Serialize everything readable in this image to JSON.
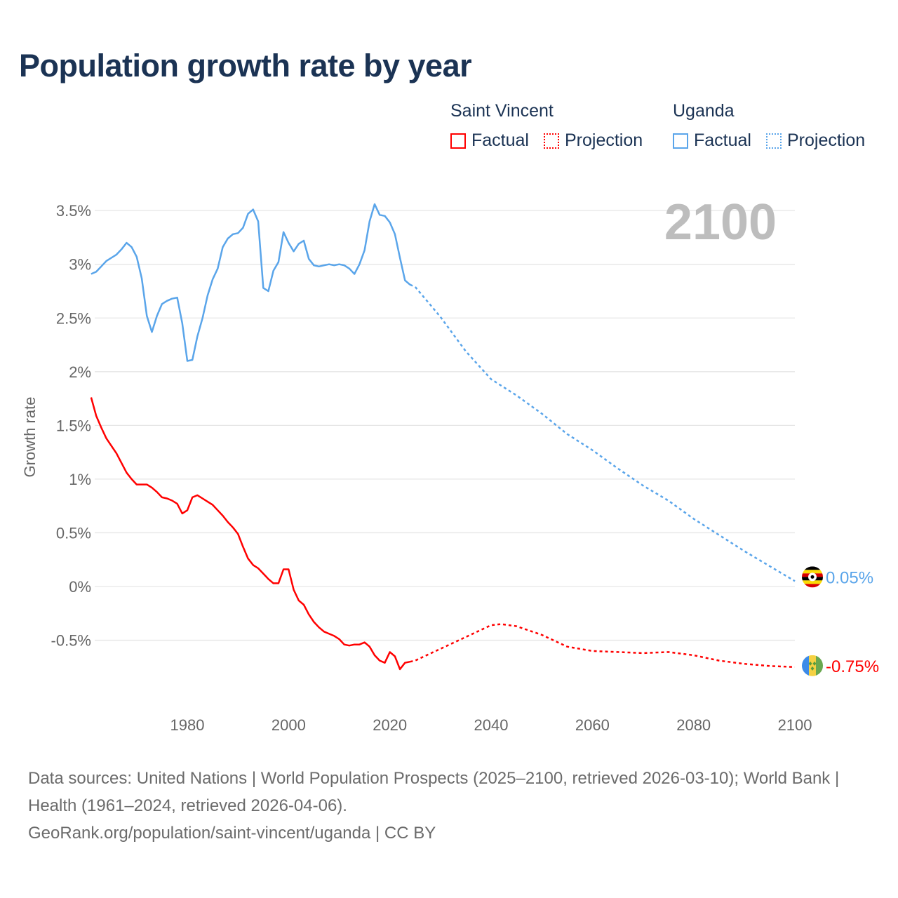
{
  "title": "Population growth rate by year",
  "legend": {
    "groups": [
      {
        "name": "Saint Vincent",
        "color": "#ff0000",
        "factual": "Factual",
        "projection": "Projection"
      },
      {
        "name": "Uganda",
        "color": "#5aa5ea",
        "factual": "Factual",
        "projection": "Projection"
      }
    ]
  },
  "footer": {
    "sources": "Data sources: United Nations | World Population Prospects (2025–2100, retrieved 2026-03-10); World Bank | Health (1961–2024, retrieved 2026-04-06).",
    "link": "GeoRank.org/population/saint-vincent/uganda | CC BY"
  },
  "chart_data": {
    "type": "line",
    "title": "Population growth rate by year",
    "xlabel": "",
    "ylabel": "Growth rate",
    "year_label": "2100",
    "xlim": [
      1961,
      2100
    ],
    "ylim": [
      -1.0,
      3.7
    ],
    "x_ticks": [
      "1980",
      "2000",
      "2020",
      "2040",
      "2060",
      "2080",
      "2100"
    ],
    "y_ticks": [
      {
        "v": 3.5,
        "label": "3.5%"
      },
      {
        "v": 3,
        "label": "3%"
      },
      {
        "v": 2.5,
        "label": "2.5%"
      },
      {
        "v": 2,
        "label": "2%"
      },
      {
        "v": 1.5,
        "label": "1.5%"
      },
      {
        "v": 1,
        "label": "1%"
      },
      {
        "v": 0.5,
        "label": "0.5%"
      },
      {
        "v": 0,
        "label": "0%"
      },
      {
        "v": -0.5,
        "label": "-0.5%"
      }
    ],
    "grid": true,
    "legend_placement": "top-right",
    "series": [
      {
        "name": "Uganda",
        "color": "#5aa5ea",
        "end_label": "0.05%",
        "factual": {
          "start_year": 1961,
          "values": [
            2.91,
            2.93,
            2.98,
            3.03,
            3.06,
            3.09,
            3.14,
            3.2,
            3.16,
            3.07,
            2.87,
            2.52,
            2.37,
            2.52,
            2.63,
            2.66,
            2.68,
            2.69,
            2.45,
            2.1,
            2.11,
            2.33,
            2.5,
            2.71,
            2.86,
            2.96,
            3.16,
            3.24,
            3.28,
            3.29,
            3.34,
            3.47,
            3.51,
            3.4,
            2.78,
            2.75,
            2.94,
            3.02,
            3.3,
            3.2,
            3.12,
            3.19,
            3.22,
            3.05,
            2.99,
            2.98,
            2.99,
            3.0,
            2.99,
            3.0,
            2.99,
            2.96,
            2.91,
            3.0,
            3.13,
            3.4,
            3.56,
            3.46,
            3.45,
            3.39,
            3.28,
            3.06,
            2.85,
            2.81
          ]
        },
        "projection": {
          "years": [
            2024,
            2025,
            2030,
            2035,
            2040,
            2045,
            2050,
            2055,
            2060,
            2065,
            2070,
            2075,
            2080,
            2085,
            2090,
            2095,
            2100
          ],
          "values": [
            2.81,
            2.79,
            2.51,
            2.19,
            1.93,
            1.78,
            1.61,
            1.42,
            1.27,
            1.1,
            0.94,
            0.8,
            0.63,
            0.48,
            0.33,
            0.19,
            0.05
          ]
        }
      },
      {
        "name": "Saint Vincent",
        "color": "#ff0000",
        "end_label": "-0.75%",
        "factual": {
          "start_year": 1961,
          "values": [
            1.76,
            1.59,
            1.48,
            1.38,
            1.31,
            1.24,
            1.15,
            1.06,
            1.0,
            0.95,
            0.95,
            0.95,
            0.92,
            0.88,
            0.83,
            0.82,
            0.8,
            0.77,
            0.68,
            0.71,
            0.83,
            0.85,
            0.82,
            0.79,
            0.76,
            0.71,
            0.66,
            0.6,
            0.55,
            0.49,
            0.37,
            0.26,
            0.2,
            0.17,
            0.12,
            0.07,
            0.03,
            0.03,
            0.16,
            0.16,
            -0.03,
            -0.13,
            -0.17,
            -0.26,
            -0.33,
            -0.38,
            -0.42,
            -0.44,
            -0.46,
            -0.49,
            -0.54,
            -0.55,
            -0.54,
            -0.54,
            -0.52,
            -0.56,
            -0.64,
            -0.69,
            -0.71,
            -0.61,
            -0.65,
            -0.77,
            -0.71,
            -0.7
          ]
        },
        "projection": {
          "years": [
            2024,
            2025,
            2030,
            2035,
            2040,
            2042,
            2045,
            2050,
            2055,
            2060,
            2065,
            2070,
            2075,
            2080,
            2085,
            2090,
            2095,
            2100
          ],
          "values": [
            -0.7,
            -0.69,
            -0.58,
            -0.47,
            -0.36,
            -0.35,
            -0.37,
            -0.45,
            -0.56,
            -0.6,
            -0.61,
            -0.62,
            -0.61,
            -0.64,
            -0.69,
            -0.72,
            -0.74,
            -0.75
          ]
        }
      }
    ]
  }
}
